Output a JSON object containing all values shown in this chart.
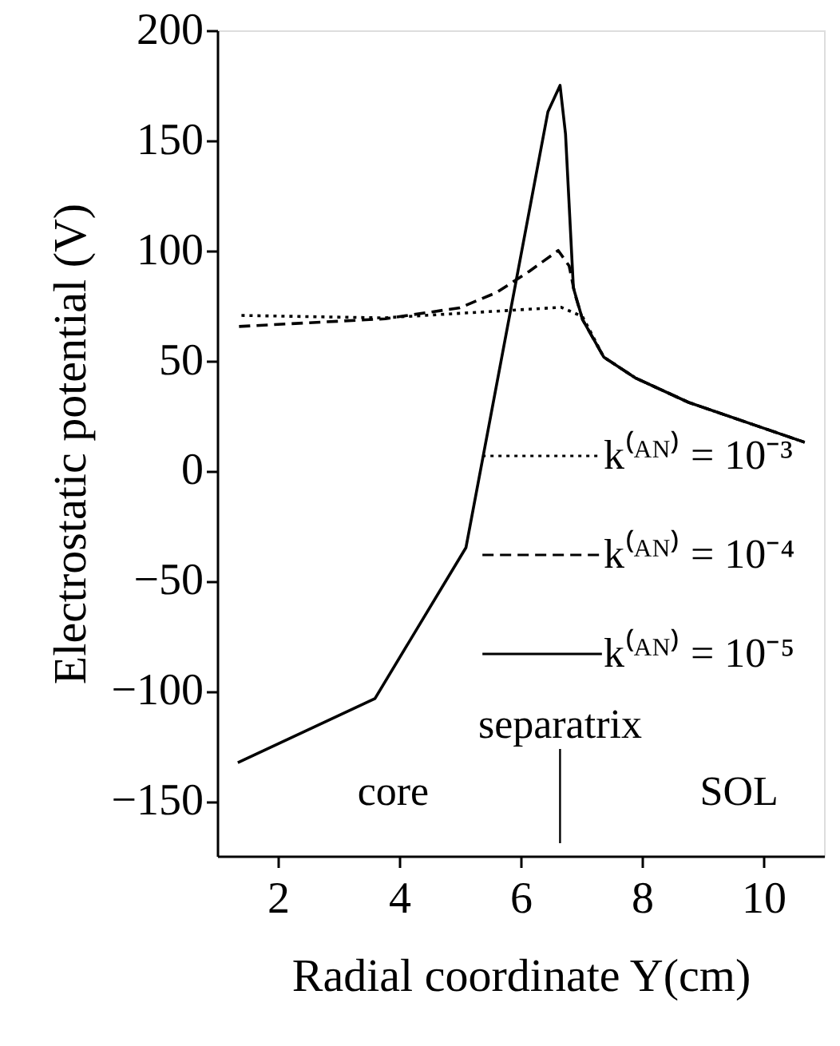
{
  "chart_data": {
    "type": "line",
    "xlabel": "Radial coordinate Y(cm)",
    "ylabel": "Electrostatic potential (V)",
    "xlim": [
      1,
      11
    ],
    "xticks": [
      2,
      4,
      6,
      8,
      10
    ],
    "ylim": [
      -175,
      200
    ],
    "yticks": [
      -150,
      -100,
      -50,
      0,
      50,
      100,
      150,
      200
    ],
    "grid": false,
    "legend": "bottom right",
    "marker": "none",
    "series": [
      {
        "name": "k⁽ᴬᴺ⁾ = 10⁻³",
        "color": "#000000",
        "line_style": "dotted",
        "x": [
          1.4,
          3.74,
          6.67,
          7.02,
          7.37,
          7.9,
          8.77,
          10.68
        ],
        "values": [
          70.5,
          69.4,
          74.2,
          70,
          51.6,
          42,
          31,
          12.9
        ]
      },
      {
        "name": "k⁽ᴬᴺ⁾ = 10⁻⁴",
        "color": "#000000",
        "line_style": "dashed",
        "x": [
          1.36,
          3.77,
          5.0,
          5.61,
          6.14,
          6.62,
          6.8,
          6.89,
          7.02,
          7.37,
          7.9,
          8.77,
          10.68
        ],
        "values": [
          65.5,
          69,
          74,
          81,
          90.5,
          100,
          93,
          80.7,
          68.7,
          51.6,
          42,
          31,
          12.9
        ]
      },
      {
        "name": "k⁽ᴬᴺ⁾ = 10⁻⁵",
        "color": "#000000",
        "line_style": "solid",
        "x": [
          1.34,
          3.6,
          5.1,
          6.45,
          6.65,
          6.74,
          6.87,
          7.02,
          7.37,
          7.9,
          8.77,
          10.68
        ],
        "values": [
          -132.6,
          -103.5,
          -34.9,
          163,
          175,
          153,
          83,
          68.7,
          51.6,
          42,
          31,
          12.9
        ]
      }
    ],
    "ref_lines": [
      {
        "axis": "x",
        "value": 6.65,
        "label": "separatrix"
      }
    ],
    "annotations": [
      "core",
      "SOL"
    ]
  }
}
